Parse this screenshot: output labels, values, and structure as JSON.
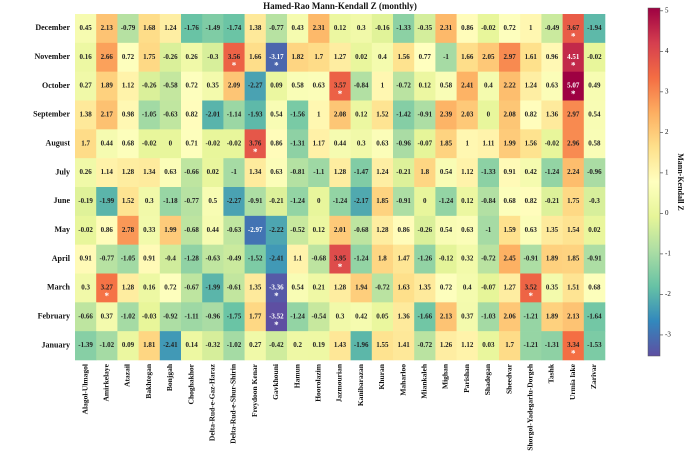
{
  "chart_data": {
    "type": "heatmap",
    "title": "Hamed-Rao Mann-Kendall Z (monthly)",
    "colormap": "Spectral_r",
    "x_categories": [
      "Alagol-Ulmagol",
      "Amirkelaye",
      "Atazail",
      "Bakhtegan",
      "Bonjgah",
      "Choghakhor",
      "Delta-Rud-e-Gaz-Haraz",
      "Delta-Rud-e-Shur-Shirin",
      "Freydoon Kenar",
      "Gavkhouni",
      "Hamun",
      "Hoorolazim",
      "Jazmourian",
      "Kanibarazan",
      "Khuran",
      "Maharloo",
      "Miankaleh",
      "Mighan",
      "Parishan",
      "Shadegan",
      "Sheedvar",
      "Shorgol-Yadegarlu-Dorgeh",
      "Tashk",
      "Urmia lake",
      "Zarivar"
    ],
    "y_categories": [
      "December",
      "November",
      "October",
      "September",
      "August",
      "July",
      "June",
      "May",
      "April",
      "March",
      "February",
      "January"
    ],
    "values": [
      [
        0.45,
        2.13,
        -0.79,
        1.68,
        1.24,
        -1.76,
        -1.49,
        -1.74,
        1.38,
        -0.77,
        0.43,
        2.31,
        0.12,
        0.3,
        -0.16,
        -1.33,
        -0.35,
        2.31,
        0.86,
        -0.02,
        0.72,
        1.0,
        -0.49,
        3.67,
        -1.94
      ],
      [
        0.16,
        2.66,
        0.72,
        1.75,
        -0.26,
        0.26,
        -0.3,
        3.56,
        1.66,
        -3.17,
        1.82,
        1.7,
        1.27,
        0.02,
        0.4,
        1.56,
        0.77,
        -1.0,
        1.66,
        2.05,
        2.97,
        1.61,
        0.96,
        4.51,
        -0.02
      ],
      [
        0.27,
        1.89,
        1.12,
        -0.26,
        -0.58,
        0.72,
        0.35,
        2.09,
        -2.27,
        0.09,
        0.58,
        0.63,
        3.57,
        -0.84,
        1.0,
        -0.72,
        0.12,
        0.58,
        2.41,
        0.4,
        2.22,
        1.24,
        0.63,
        5.07,
        0.49
      ],
      [
        1.38,
        2.17,
        0.98,
        -1.05,
        -0.63,
        0.82,
        -2.01,
        -1.14,
        -1.93,
        0.54,
        -1.56,
        1.0,
        2.08,
        0.12,
        1.52,
        -1.42,
        -0.91,
        2.39,
        2.03,
        0.0,
        2.08,
        0.82,
        1.36,
        2.97,
        0.54
      ],
      [
        1.7,
        0.44,
        0.68,
        -0.02,
        0.0,
        0.71,
        -0.02,
        -0.02,
        3.76,
        0.86,
        -1.31,
        1.17,
        0.44,
        0.3,
        0.63,
        -0.96,
        -0.07,
        1.85,
        1.0,
        1.11,
        1.99,
        1.56,
        -0.02,
        2.96,
        0.58
      ],
      [
        0.26,
        1.14,
        1.28,
        1.34,
        0.63,
        -0.66,
        0.02,
        -1.0,
        1.34,
        0.63,
        -0.81,
        -1.1,
        1.28,
        -1.47,
        1.24,
        -0.21,
        1.8,
        0.54,
        1.12,
        -1.33,
        0.91,
        0.42,
        -1.24,
        2.24,
        -0.96
      ],
      [
        -0.19,
        -1.99,
        1.52,
        0.3,
        -1.18,
        -0.77,
        0.5,
        -2.27,
        -0.91,
        -0.21,
        -1.24,
        0.0,
        -1.24,
        -2.17,
        1.85,
        -0.91,
        0.0,
        -1.24,
        0.12,
        -0.84,
        0.68,
        0.82,
        -0.21,
        1.75,
        -0.3
      ],
      [
        -0.02,
        0.86,
        2.78,
        0.33,
        1.99,
        -0.68,
        0.44,
        -0.63,
        -2.97,
        -2.22,
        -0.52,
        0.12,
        2.01,
        -0.68,
        1.28,
        0.86,
        -0.26,
        0.54,
        0.63,
        -1.0,
        1.59,
        0.63,
        1.35,
        1.54,
        0.02
      ],
      [
        0.91,
        -0.77,
        -1.05,
        0.91,
        -0.4,
        -1.28,
        -0.63,
        -0.49,
        -1.52,
        -2.41,
        1.1,
        -0.68,
        3.95,
        -1.24,
        1.8,
        1.47,
        -1.26,
        -0.12,
        0.32,
        -0.72,
        2.45,
        -0.91,
        1.89,
        1.85,
        -0.91
      ],
      [
        0.3,
        3.27,
        1.28,
        0.16,
        0.72,
        -0.67,
        -1.99,
        -0.61,
        1.35,
        -3.36,
        0.54,
        0.21,
        1.28,
        1.94,
        -0.72,
        1.63,
        1.35,
        0.72,
        0.4,
        -0.07,
        1.27,
        3.52,
        0.35,
        1.51,
        0.68
      ],
      [
        -0.66,
        0.37,
        -1.02,
        -0.03,
        -0.92,
        -1.11,
        -0.96,
        -1.75,
        1.77,
        -3.52,
        -1.24,
        -0.54,
        0.3,
        0.42,
        0.05,
        1.36,
        -1.66,
        2.13,
        0.37,
        -1.03,
        2.06,
        -1.21,
        1.89,
        2.13,
        -1.64
      ],
      [
        -1.39,
        -1.02,
        0.09,
        1.81,
        -2.41,
        0.14,
        -0.32,
        -1.02,
        0.27,
        -0.42,
        0.2,
        0.19,
        1.43,
        -1.96,
        1.55,
        1.41,
        -0.72,
        1.26,
        1.12,
        0.03,
        1.7,
        -1.21,
        -1.31,
        3.34,
        -1.53
      ]
    ],
    "annotations": [
      {
        "text": "*",
        "row": "December",
        "column": "Urmia lake"
      },
      {
        "text": "*",
        "row": "November",
        "column": "Delta-Rud-e-Shur-Shirin"
      },
      {
        "text": "*",
        "row": "November",
        "column": "Gavkhouni"
      },
      {
        "text": "*",
        "row": "November",
        "column": "Urmia lake"
      },
      {
        "text": "*",
        "row": "October",
        "column": "Jazmourian"
      },
      {
        "text": "*",
        "row": "October",
        "column": "Urmia lake"
      },
      {
        "text": "*",
        "row": "August",
        "column": "Freydoon Kenar"
      },
      {
        "text": "*",
        "row": "April",
        "column": "Jazmourian"
      },
      {
        "text": "*",
        "row": "March",
        "column": "Amirkelaye"
      },
      {
        "text": "*",
        "row": "March",
        "column": "Gavkhouni"
      },
      {
        "text": "*",
        "row": "March",
        "column": "Shorgol-Yadegarlu-Dorgeh"
      },
      {
        "text": "*",
        "row": "February",
        "column": "Gavkhouni"
      },
      {
        "text": "*",
        "row": "January",
        "column": "Urmia lake"
      }
    ],
    "colorbar": {
      "label": "Mann-Kendall Z",
      "lim": [
        -3.52,
        5.07
      ],
      "ticks": [
        -3,
        -2,
        -1,
        0,
        1,
        2,
        3,
        4,
        5
      ]
    }
  }
}
